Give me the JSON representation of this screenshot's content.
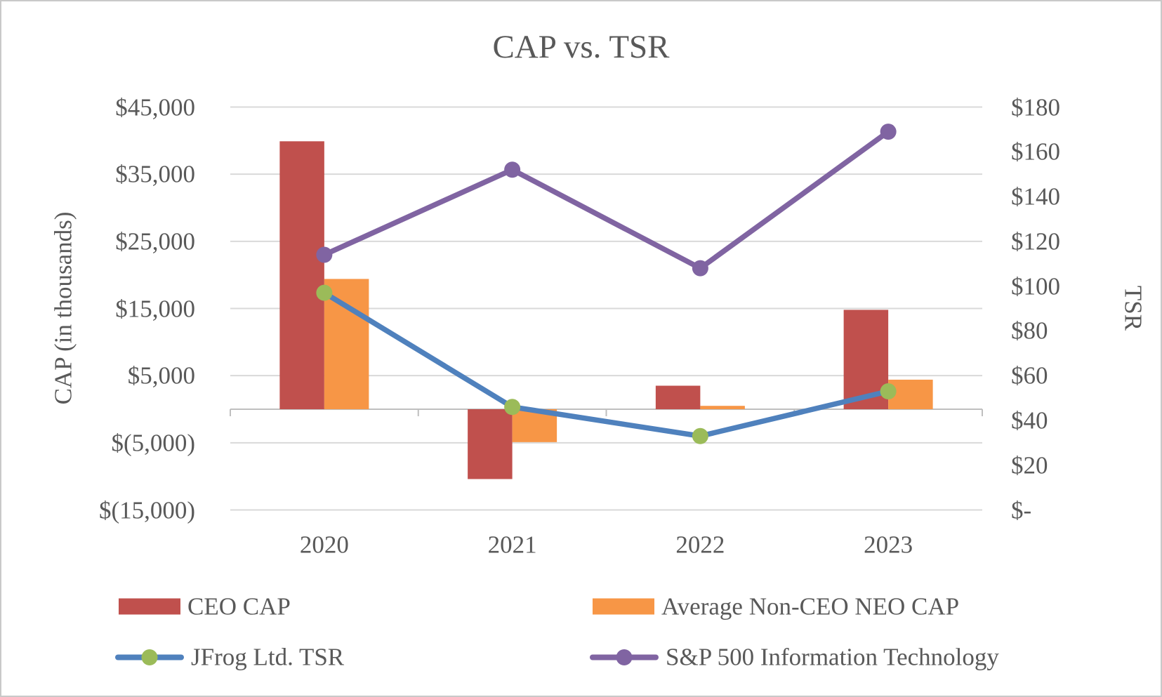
{
  "chart_data": {
    "type": "combo_bar_line",
    "title": "CAP vs. TSR",
    "categories": [
      "2020",
      "2021",
      "2022",
      "2023"
    ],
    "bar_series": [
      {
        "name": "CEO CAP",
        "axis": "left",
        "color": "#C0504D",
        "values": [
          39900,
          -10400,
          3500,
          14800
        ]
      },
      {
        "name": "Average Non-CEO NEO CAP",
        "axis": "left",
        "color": "#F79646",
        "values": [
          19400,
          -4900,
          500,
          4400
        ]
      }
    ],
    "line_series": [
      {
        "name": "JFrog Ltd. TSR",
        "axis": "right",
        "line_color": "#4F81BD",
        "marker_color": "#9BBB59",
        "values": [
          97,
          46,
          33,
          53
        ]
      },
      {
        "name": "S&P 500 Information Technology",
        "axis": "right",
        "line_color": "#8064A2",
        "marker_color": "#8064A2",
        "values": [
          114,
          152,
          108,
          169
        ]
      }
    ],
    "left_axis": {
      "title": "CAP (in thousands)",
      "min": -15000,
      "max": 45000,
      "step": 10000,
      "tick_values": [
        45000,
        35000,
        25000,
        15000,
        5000,
        -5000,
        -15000
      ],
      "tick_labels": [
        "$45,000",
        "$35,000",
        "$25,000",
        "$15,000",
        "$5,000",
        "$(5,000)",
        "$(15,000)"
      ]
    },
    "right_axis": {
      "title": "TSR",
      "min": 0,
      "max": 180,
      "step": 20,
      "tick_values": [
        180,
        160,
        140,
        120,
        100,
        80,
        60,
        40,
        20,
        0
      ],
      "tick_labels": [
        "$180",
        "$160",
        "$140",
        "$120",
        "$100",
        "$80",
        "$60",
        "$40",
        "$20",
        "$-"
      ]
    },
    "x_axis": {
      "tick_labels": [
        "2020",
        "2021",
        "2022",
        "2023"
      ]
    },
    "legend": {
      "position": "bottom",
      "items": [
        {
          "label": "CEO CAP",
          "type": "bar",
          "color": "#C0504D"
        },
        {
          "label": "Average Non-CEO NEO CAP",
          "type": "bar",
          "color": "#F79646"
        },
        {
          "label": "JFrog Ltd. TSR",
          "type": "line",
          "line_color": "#4F81BD",
          "marker_color": "#9BBB59"
        },
        {
          "label": "S&P 500 Information Technology",
          "type": "line",
          "line_color": "#8064A2",
          "marker_color": "#8064A2"
        }
      ]
    },
    "layout_hints": {
      "gridlines": "horizontal",
      "legend_position": "bottom-two-columns"
    },
    "palette": {
      "text": "#595959",
      "gridline": "#D9D9D9",
      "axis_line": "#BFBFBF",
      "frame_border": "#C9C9C9",
      "background": "#FFFFFF"
    }
  }
}
